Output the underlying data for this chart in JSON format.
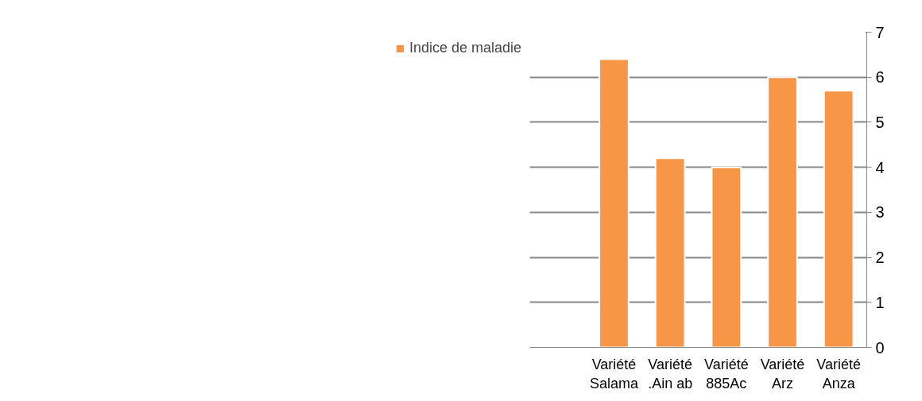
{
  "chart_data": {
    "type": "bar",
    "categories": [
      null,
      "Variété\nSalama",
      "Variété\n.Ain ab",
      "Variété\n885Ac",
      "Variété\nArz",
      "Variété\nAnza"
    ],
    "series": [
      {
        "name": "Indice de maladie",
        "color": "#f79646",
        "values": [
          null,
          6.4,
          4.2,
          4.0,
          6.0,
          5.7
        ]
      }
    ],
    "ylim": [
      0,
      7
    ],
    "yticks": [
      0,
      1,
      2,
      3,
      4,
      5,
      6,
      7
    ],
    "grid": "y",
    "legend": "left"
  }
}
